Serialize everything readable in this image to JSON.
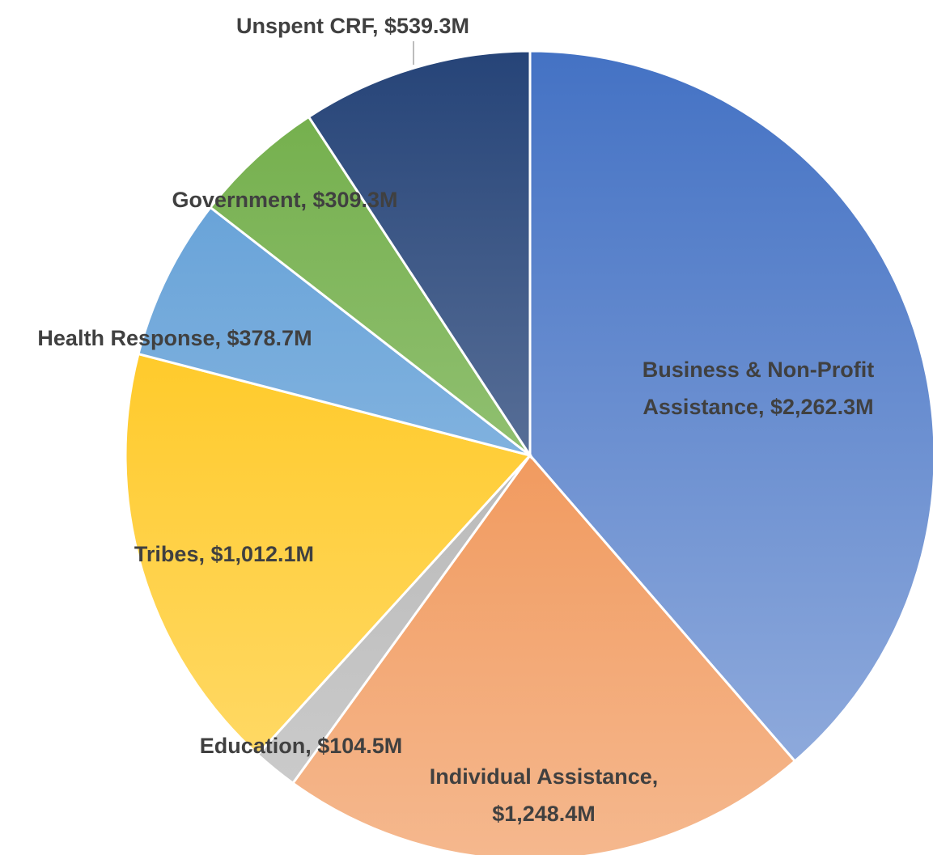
{
  "chart_data": {
    "type": "pie",
    "title": "",
    "unit": "$M",
    "slices": [
      {
        "name": "Business & Non-Profit Assistance",
        "value": 2262.3,
        "color": "#4472C4",
        "label_lines": [
          "Business & Non-Profit",
          "Assistance, $2,262.3M"
        ]
      },
      {
        "name": "Individual Assistance",
        "value": 1248.4,
        "color": "#ED7D31",
        "label_lines": [
          "Individual Assistance,",
          "$1,248.4M"
        ]
      },
      {
        "name": "Education",
        "value": 104.5,
        "color": "#A5A5A5",
        "label_lines": [
          "Education, $104.5M"
        ]
      },
      {
        "name": "Tribes",
        "value": 1012.1,
        "color": "#FFC000",
        "label_lines": [
          "Tribes, $1,012.1M"
        ]
      },
      {
        "name": "Health Response",
        "value": 378.7,
        "color": "#5B9BD5",
        "label_lines": [
          "Health Response, $378.7M"
        ]
      },
      {
        "name": "Government",
        "value": 309.3,
        "color": "#70AD47",
        "label_lines": [
          "Government, $309.3M"
        ]
      },
      {
        "name": "Unspent CRF",
        "value": 539.3,
        "color": "#264478",
        "label_lines": [
          "Unspent CRF, $539.3M"
        ]
      }
    ],
    "start_angle": "12 o'clock",
    "direction": "clockwise",
    "legend": "none",
    "data_labels": "category name and value"
  }
}
